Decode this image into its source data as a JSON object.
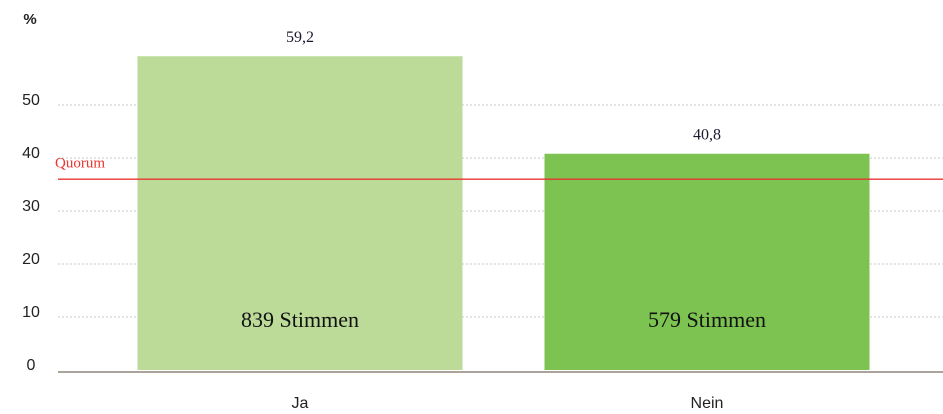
{
  "chart_data": {
    "type": "bar",
    "y_unit_label": "%",
    "categories": [
      "Ja",
      "Nein"
    ],
    "values": [
      59.2,
      40.8
    ],
    "value_labels": [
      "59,2",
      "40,8"
    ],
    "bar_labels": [
      "839 Stimmen",
      "579 Stimmen"
    ],
    "colors": [
      "#bcdb98",
      "#7dc352"
    ],
    "quorum": {
      "label": "Quorum",
      "value": 36,
      "color": "#e8352f"
    },
    "ylim": [
      0,
      65
    ],
    "yticks": [
      0,
      10,
      20,
      30,
      40,
      50
    ],
    "grid": true
  }
}
